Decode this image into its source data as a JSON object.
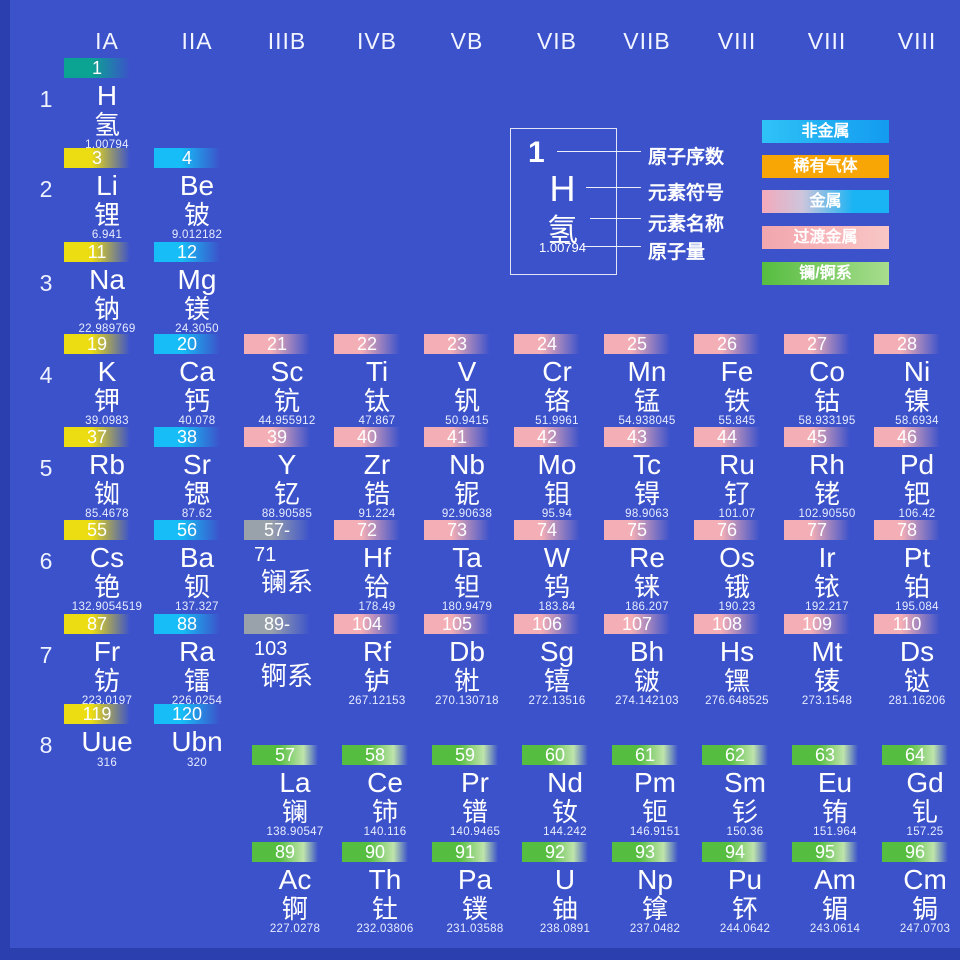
{
  "colors": {
    "background": "#3c52ca",
    "edge_strip": "#2b40ae",
    "badge_hydrogen": "#0ba391",
    "badge_alkali_yellow": "#ecdc12",
    "badge_alkaline_cyan": "#16bdf6",
    "badge_transition_pink": "#f3aeb6",
    "badge_placeholder_gray": "#99a1ab",
    "badge_lanact_green": "#55bd3f",
    "legend_nonmetal": "#1fb5f3",
    "legend_noble_gas": "#f7a606",
    "legend_transition": "#f5b2b6",
    "legend_lanact": "#6cc455",
    "text": "#ffffff"
  },
  "group_headers": [
    "IA",
    "IIA",
    "IIIB",
    "IVB",
    "VB",
    "VIB",
    "VIIB",
    "VIII",
    "VIII",
    "VIII"
  ],
  "period_labels": [
    "1",
    "2",
    "3",
    "4",
    "5",
    "6",
    "7",
    "8"
  ],
  "legend_key": {
    "sample": {
      "number": "1",
      "symbol": "H",
      "name": "氢",
      "mass": "1.00794"
    },
    "labels": [
      "原子序数",
      "元素符号",
      "元素名称",
      "原子量"
    ]
  },
  "color_legend": [
    {
      "label": "非金属",
      "type": "nonmetal"
    },
    {
      "label": "稀有气体",
      "type": "noble"
    },
    {
      "label": "金属",
      "type": "metal"
    },
    {
      "label": "过渡金属",
      "type": "transition"
    },
    {
      "label": "镧/锕系",
      "type": "lanact"
    }
  ],
  "elements": [
    {
      "r": "1",
      "c": 1,
      "num": "1",
      "sym": "H",
      "name": "氢",
      "mass": "1.00794",
      "type": "hydrogen"
    },
    {
      "r": "2",
      "c": 1,
      "num": "3",
      "sym": "Li",
      "name": "锂",
      "mass": "6.941",
      "type": "alkali"
    },
    {
      "r": "2",
      "c": 2,
      "num": "4",
      "sym": "Be",
      "name": "铍",
      "mass": "9.012182",
      "type": "alkaline"
    },
    {
      "r": "3",
      "c": 1,
      "num": "11",
      "sym": "Na",
      "name": "钠",
      "mass": "22.989769",
      "type": "alkali"
    },
    {
      "r": "3",
      "c": 2,
      "num": "12",
      "sym": "Mg",
      "name": "镁",
      "mass": "24.3050",
      "type": "alkaline"
    },
    {
      "r": "4",
      "c": 1,
      "num": "19",
      "sym": "K",
      "name": "钾",
      "mass": "39.0983",
      "type": "alkali"
    },
    {
      "r": "4",
      "c": 2,
      "num": "20",
      "sym": "Ca",
      "name": "钙",
      "mass": "40.078",
      "type": "alkaline"
    },
    {
      "r": "4",
      "c": 3,
      "num": "21",
      "sym": "Sc",
      "name": "钪",
      "mass": "44.955912",
      "type": "transition"
    },
    {
      "r": "4",
      "c": 4,
      "num": "22",
      "sym": "Ti",
      "name": "钛",
      "mass": "47.867",
      "type": "transition"
    },
    {
      "r": "4",
      "c": 5,
      "num": "23",
      "sym": "V",
      "name": "钒",
      "mass": "50.9415",
      "type": "transition"
    },
    {
      "r": "4",
      "c": 6,
      "num": "24",
      "sym": "Cr",
      "name": "铬",
      "mass": "51.9961",
      "type": "transition"
    },
    {
      "r": "4",
      "c": 7,
      "num": "25",
      "sym": "Mn",
      "name": "锰",
      "mass": "54.938045",
      "type": "transition"
    },
    {
      "r": "4",
      "c": 8,
      "num": "26",
      "sym": "Fe",
      "name": "铁",
      "mass": "55.845",
      "type": "transition"
    },
    {
      "r": "4",
      "c": 9,
      "num": "27",
      "sym": "Co",
      "name": "钴",
      "mass": "58.933195",
      "type": "transition"
    },
    {
      "r": "4",
      "c": 10,
      "num": "28",
      "sym": "Ni",
      "name": "镍",
      "mass": "58.6934",
      "type": "transition"
    },
    {
      "r": "5",
      "c": 1,
      "num": "37",
      "sym": "Rb",
      "name": "铷",
      "mass": "85.4678",
      "type": "alkali"
    },
    {
      "r": "5",
      "c": 2,
      "num": "38",
      "sym": "Sr",
      "name": "锶",
      "mass": "87.62",
      "type": "alkaline"
    },
    {
      "r": "5",
      "c": 3,
      "num": "39",
      "sym": "Y",
      "name": "钇",
      "mass": "88.90585",
      "type": "transition"
    },
    {
      "r": "5",
      "c": 4,
      "num": "40",
      "sym": "Zr",
      "name": "锆",
      "mass": "91.224",
      "type": "transition"
    },
    {
      "r": "5",
      "c": 5,
      "num": "41",
      "sym": "Nb",
      "name": "铌",
      "mass": "92.90638",
      "type": "transition"
    },
    {
      "r": "5",
      "c": 6,
      "num": "42",
      "sym": "Mo",
      "name": "钼",
      "mass": "95.94",
      "type": "transition"
    },
    {
      "r": "5",
      "c": 7,
      "num": "43",
      "sym": "Tc",
      "name": "锝",
      "mass": "98.9063",
      "type": "transition"
    },
    {
      "r": "5",
      "c": 8,
      "num": "44",
      "sym": "Ru",
      "name": "钌",
      "mass": "101.07",
      "type": "transition"
    },
    {
      "r": "5",
      "c": 9,
      "num": "45",
      "sym": "Rh",
      "name": "铑",
      "mass": "102.90550",
      "type": "transition"
    },
    {
      "r": "5",
      "c": 10,
      "num": "46",
      "sym": "Pd",
      "name": "钯",
      "mass": "106.42",
      "type": "transition"
    },
    {
      "r": "6",
      "c": 1,
      "num": "55",
      "sym": "Cs",
      "name": "铯",
      "mass": "132.9054519",
      "type": "alkali"
    },
    {
      "r": "6",
      "c": 2,
      "num": "56",
      "sym": "Ba",
      "name": "钡",
      "mass": "137.327",
      "type": "alkaline"
    },
    {
      "r": "6",
      "c": 3,
      "num": "57-",
      "sym": "71",
      "name": "镧系",
      "mass": "",
      "type": "placeholder"
    },
    {
      "r": "6",
      "c": 4,
      "num": "72",
      "sym": "Hf",
      "name": "铪",
      "mass": "178.49",
      "type": "transition"
    },
    {
      "r": "6",
      "c": 5,
      "num": "73",
      "sym": "Ta",
      "name": "钽",
      "mass": "180.9479",
      "type": "transition"
    },
    {
      "r": "6",
      "c": 6,
      "num": "74",
      "sym": "W",
      "name": "钨",
      "mass": "183.84",
      "type": "transition"
    },
    {
      "r": "6",
      "c": 7,
      "num": "75",
      "sym": "Re",
      "name": "铼",
      "mass": "186.207",
      "type": "transition"
    },
    {
      "r": "6",
      "c": 8,
      "num": "76",
      "sym": "Os",
      "name": "锇",
      "mass": "190.23",
      "type": "transition"
    },
    {
      "r": "6",
      "c": 9,
      "num": "77",
      "sym": "Ir",
      "name": "铱",
      "mass": "192.217",
      "type": "transition"
    },
    {
      "r": "6",
      "c": 10,
      "num": "78",
      "sym": "Pt",
      "name": "铂",
      "mass": "195.084",
      "type": "transition"
    },
    {
      "r": "7",
      "c": 1,
      "num": "87",
      "sym": "Fr",
      "name": "钫",
      "mass": "223.0197",
      "type": "alkali"
    },
    {
      "r": "7",
      "c": 2,
      "num": "88",
      "sym": "Ra",
      "name": "镭",
      "mass": "226.0254",
      "type": "alkaline"
    },
    {
      "r": "7",
      "c": 3,
      "num": "89-",
      "sym": "103",
      "name": "锕系",
      "mass": "",
      "type": "placeholder"
    },
    {
      "r": "7",
      "c": 4,
      "num": "104",
      "sym": "Rf",
      "name": "𬬻",
      "mass": "267.12153",
      "type": "transition"
    },
    {
      "r": "7",
      "c": 5,
      "num": "105",
      "sym": "Db",
      "name": "𬭊",
      "mass": "270.130718",
      "type": "transition"
    },
    {
      "r": "7",
      "c": 6,
      "num": "106",
      "sym": "Sg",
      "name": "𬭳",
      "mass": "272.13516",
      "type": "transition"
    },
    {
      "r": "7",
      "c": 7,
      "num": "107",
      "sym": "Bh",
      "name": "𬭛",
      "mass": "274.142103",
      "type": "transition"
    },
    {
      "r": "7",
      "c": 8,
      "num": "108",
      "sym": "Hs",
      "name": "𬭶",
      "mass": "276.648525",
      "type": "transition"
    },
    {
      "r": "7",
      "c": 9,
      "num": "109",
      "sym": "Mt",
      "name": "鿏",
      "mass": "273.1548",
      "type": "transition"
    },
    {
      "r": "7",
      "c": 10,
      "num": "110",
      "sym": "Ds",
      "name": "𫟼",
      "mass": "281.16206",
      "type": "transition"
    },
    {
      "r": "8",
      "c": 1,
      "num": "119",
      "sym": "Uue",
      "name": "",
      "mass": "316",
      "type": "alkali"
    },
    {
      "r": "8",
      "c": 2,
      "num": "120",
      "sym": "Ubn",
      "name": "",
      "mass": "320",
      "type": "alkaline"
    },
    {
      "r": "L",
      "c": 3,
      "num": "57",
      "sym": "La",
      "name": "镧",
      "mass": "138.90547",
      "type": "lanact"
    },
    {
      "r": "L",
      "c": 4,
      "num": "58",
      "sym": "Ce",
      "name": "铈",
      "mass": "140.116",
      "type": "lanact"
    },
    {
      "r": "L",
      "c": 5,
      "num": "59",
      "sym": "Pr",
      "name": "镨",
      "mass": "140.9465",
      "type": "lanact"
    },
    {
      "r": "L",
      "c": 6,
      "num": "60",
      "sym": "Nd",
      "name": "钕",
      "mass": "144.242",
      "type": "lanact"
    },
    {
      "r": "L",
      "c": 7,
      "num": "61",
      "sym": "Pm",
      "name": "钷",
      "mass": "146.9151",
      "type": "lanact"
    },
    {
      "r": "L",
      "c": 8,
      "num": "62",
      "sym": "Sm",
      "name": "钐",
      "mass": "150.36",
      "type": "lanact"
    },
    {
      "r": "L",
      "c": 9,
      "num": "63",
      "sym": "Eu",
      "name": "铕",
      "mass": "151.964",
      "type": "lanact"
    },
    {
      "r": "L",
      "c": 10,
      "num": "64",
      "sym": "Gd",
      "name": "钆",
      "mass": "157.25",
      "type": "lanact"
    },
    {
      "r": "A",
      "c": 3,
      "num": "89",
      "sym": "Ac",
      "name": "锕",
      "mass": "227.0278",
      "type": "lanact"
    },
    {
      "r": "A",
      "c": 4,
      "num": "90",
      "sym": "Th",
      "name": "钍",
      "mass": "232.03806",
      "type": "lanact"
    },
    {
      "r": "A",
      "c": 5,
      "num": "91",
      "sym": "Pa",
      "name": "镤",
      "mass": "231.03588",
      "type": "lanact"
    },
    {
      "r": "A",
      "c": 6,
      "num": "92",
      "sym": "U",
      "name": "铀",
      "mass": "238.0891",
      "type": "lanact"
    },
    {
      "r": "A",
      "c": 7,
      "num": "93",
      "sym": "Np",
      "name": "镎",
      "mass": "237.0482",
      "type": "lanact"
    },
    {
      "r": "A",
      "c": 8,
      "num": "94",
      "sym": "Pu",
      "name": "钚",
      "mass": "244.0642",
      "type": "lanact"
    },
    {
      "r": "A",
      "c": 9,
      "num": "95",
      "sym": "Am",
      "name": "镅",
      "mass": "243.0614",
      "type": "lanact"
    },
    {
      "r": "A",
      "c": 10,
      "num": "96",
      "sym": "Cm",
      "name": "锔",
      "mass": "247.0703",
      "type": "lanact"
    }
  ]
}
